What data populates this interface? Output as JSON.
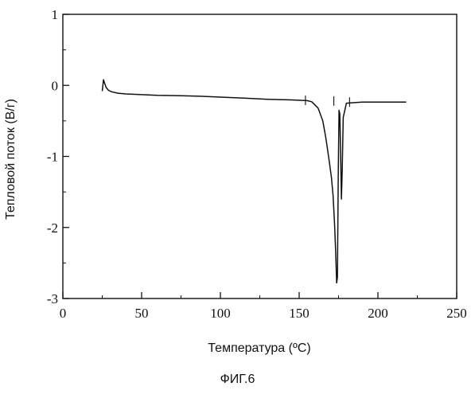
{
  "chart_data": {
    "type": "line",
    "title": "",
    "xlabel": "Температура (ºС)",
    "ylabel": "Тепловой поток (В/г)",
    "xlim": [
      0,
      250
    ],
    "ylim": [
      -3,
      1
    ],
    "x_ticks": [
      0,
      50,
      100,
      150,
      200,
      250
    ],
    "x_tick_labels": [
      "0",
      "50",
      "100",
      "150",
      "200",
      "250"
    ],
    "y_ticks": [
      -3,
      -2,
      -1,
      0,
      1
    ],
    "y_tick_labels": [
      "-3",
      "-2",
      "-1",
      "0",
      "1"
    ],
    "grid": false,
    "series": [
      {
        "color": "#111111",
        "x": [
          25,
          25.8,
          26.5,
          27.5,
          29,
          31,
          35,
          40,
          50,
          60,
          75,
          90,
          100,
          115,
          130,
          145,
          155,
          158,
          162,
          165,
          167,
          169,
          170.5,
          171.5,
          172.5,
          173.2,
          173.8,
          174.3,
          174.8,
          175.3,
          175.8,
          176.3,
          176.8,
          177.3,
          178,
          180,
          190,
          200,
          210,
          218
        ],
        "y": [
          -0.08,
          0.08,
          0.03,
          -0.03,
          -0.07,
          -0.09,
          -0.11,
          -0.12,
          -0.13,
          -0.14,
          -0.145,
          -0.155,
          -0.165,
          -0.18,
          -0.195,
          -0.205,
          -0.215,
          -0.23,
          -0.32,
          -0.5,
          -0.75,
          -1.05,
          -1.3,
          -1.55,
          -1.95,
          -2.35,
          -2.78,
          -2.7,
          -1.3,
          -0.35,
          -0.4,
          -0.95,
          -1.6,
          -1.2,
          -0.45,
          -0.25,
          -0.235,
          -0.235,
          -0.235,
          -0.235
        ]
      }
    ],
    "annotations": [
      {
        "x": 154,
        "y": -0.21
      },
      {
        "x": 172,
        "y": -0.22
      },
      {
        "x": 182,
        "y": -0.235
      }
    ]
  },
  "caption": "ФИГ.6"
}
